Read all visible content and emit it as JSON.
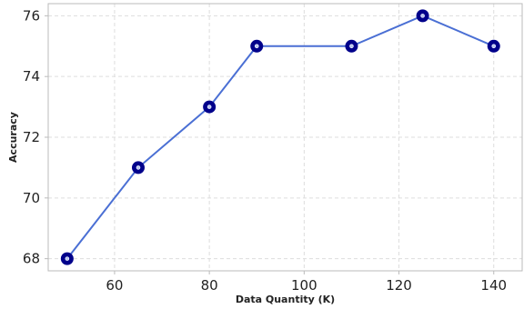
{
  "chart_data": {
    "type": "line",
    "title": "",
    "xlabel": "Data Quantity (K)",
    "ylabel": "Accuracy",
    "x": [
      50,
      65,
      80,
      90,
      110,
      125,
      140
    ],
    "series": [
      {
        "values": [
          68,
          71,
          73,
          75,
          75,
          76,
          75
        ]
      }
    ],
    "xlim": [
      46,
      146
    ],
    "ylim": [
      67.6,
      76.4
    ],
    "xticks": [
      60,
      80,
      100,
      120,
      140
    ],
    "yticks": [
      68,
      70,
      72,
      74,
      76
    ],
    "grid": true,
    "legend": "none",
    "colors": {
      "line": "#4a6fd4",
      "marker": "#00008b",
      "marker_center": "#b8c6f0",
      "grid": "#dddddd",
      "axis": "#bbbbbb"
    }
  }
}
